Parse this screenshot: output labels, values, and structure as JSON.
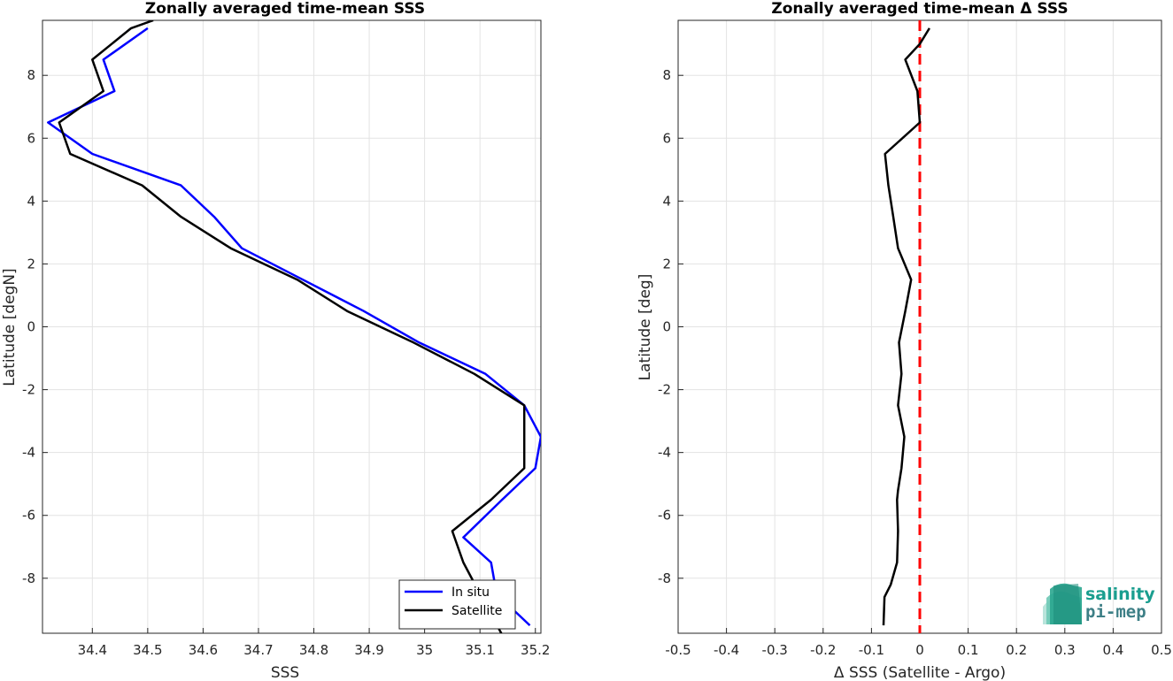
{
  "chart_data": [
    {
      "type": "line",
      "title": "Zonally averaged time-mean SSS",
      "xlabel": "SSS",
      "ylabel": "Latitude [degN]",
      "xlim": [
        34.31,
        35.21
      ],
      "ylim": [
        -9.75,
        9.75
      ],
      "xticks": [
        "34.4",
        "34.5",
        "34.6",
        "34.7",
        "34.8",
        "34.9",
        "35",
        "35.1",
        "35.2"
      ],
      "yticks": [
        "-8",
        "-6",
        "-4",
        "-2",
        "0",
        "2",
        "4",
        "6",
        "8"
      ],
      "grid": true,
      "legend": "bottom-right",
      "series": [
        {
          "name": "In situ",
          "color": "#0000ff",
          "points": [
            [
              35.19,
              -9.5
            ],
            [
              35.13,
              -8.5
            ],
            [
              35.12,
              -7.5
            ],
            [
              35.07,
              -6.7
            ],
            [
              35.14,
              -5.5
            ],
            [
              35.2,
              -4.5
            ],
            [
              35.21,
              -3.5
            ],
            [
              35.18,
              -2.5
            ],
            [
              35.11,
              -1.5
            ],
            [
              34.99,
              -0.5
            ],
            [
              34.89,
              0.5
            ],
            [
              34.78,
              1.5
            ],
            [
              34.67,
              2.5
            ],
            [
              34.62,
              3.5
            ],
            [
              34.56,
              4.5
            ],
            [
              34.4,
              5.5
            ],
            [
              34.32,
              6.5
            ],
            [
              34.44,
              7.5
            ],
            [
              34.42,
              8.5
            ],
            [
              34.5,
              9.5
            ]
          ]
        },
        {
          "name": "Satellite",
          "color": "#000000",
          "points": [
            [
              35.14,
              -9.8
            ],
            [
              35.1,
              -8.5
            ],
            [
              35.07,
              -7.5
            ],
            [
              35.05,
              -6.5
            ],
            [
              35.12,
              -5.5
            ],
            [
              35.18,
              -4.5
            ],
            [
              35.18,
              -3.5
            ],
            [
              35.18,
              -2.5
            ],
            [
              35.09,
              -1.5
            ],
            [
              34.98,
              -0.5
            ],
            [
              34.86,
              0.5
            ],
            [
              34.77,
              1.5
            ],
            [
              34.65,
              2.5
            ],
            [
              34.56,
              3.5
            ],
            [
              34.49,
              4.5
            ],
            [
              34.36,
              5.5
            ],
            [
              34.34,
              6.5
            ],
            [
              34.42,
              7.5
            ],
            [
              34.4,
              8.5
            ],
            [
              34.47,
              9.5
            ],
            [
              34.51,
              9.75
            ]
          ]
        }
      ]
    },
    {
      "type": "line",
      "title": "Zonally averaged time-mean Δ SSS",
      "xlabel": "Δ SSS (Satellite - Argo)",
      "ylabel": "Latitude [deg]",
      "xlim": [
        -0.5,
        0.5
      ],
      "ylim": [
        -9.75,
        9.75
      ],
      "xticks": [
        "-0.5",
        "-0.4",
        "-0.3",
        "-0.2",
        "-0.1",
        "0",
        "0.1",
        "0.2",
        "0.3",
        "0.4",
        "0.5"
      ],
      "yticks": [
        "-8",
        "-6",
        "-4",
        "-2",
        "0",
        "2",
        "4",
        "6",
        "8"
      ],
      "grid": true,
      "zero_line_color": "#ff0000",
      "series": [
        {
          "color": "#000000",
          "points": [
            [
              -0.075,
              -9.5
            ],
            [
              -0.073,
              -8.6
            ],
            [
              -0.06,
              -8.2
            ],
            [
              -0.047,
              -7.5
            ],
            [
              -0.045,
              -6.5
            ],
            [
              -0.047,
              -5.5
            ],
            [
              -0.045,
              -5.2
            ],
            [
              -0.038,
              -4.5
            ],
            [
              -0.032,
              -3.5
            ],
            [
              -0.045,
              -2.5
            ],
            [
              -0.038,
              -1.5
            ],
            [
              -0.043,
              -0.5
            ],
            [
              -0.03,
              0.5
            ],
            [
              -0.018,
              1.5
            ],
            [
              -0.045,
              2.5
            ],
            [
              -0.055,
              3.5
            ],
            [
              -0.065,
              4.5
            ],
            [
              -0.072,
              5.5
            ],
            [
              0.0,
              6.5
            ],
            [
              -0.005,
              7.5
            ],
            [
              -0.03,
              8.5
            ],
            [
              0.0,
              9.0
            ],
            [
              0.02,
              9.5
            ]
          ]
        }
      ]
    }
  ],
  "logo": {
    "line1": "salinity",
    "line2": "pi-mep"
  }
}
